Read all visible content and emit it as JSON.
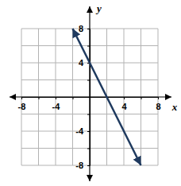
{
  "chart_data": {
    "type": "line",
    "x_label": "x",
    "y_label": "y",
    "x": [
      -2,
      6
    ],
    "values": [
      8,
      -8
    ],
    "color": "#1f3a5f",
    "marker": "arrow",
    "xlim": [
      -8,
      8
    ],
    "ylim": [
      -8,
      8
    ],
    "xticks": [
      -8,
      {
        "value": -6,
        "label": null
      },
      -4,
      {
        "value": -2,
        "label": null
      },
      {
        "value": 0,
        "label": null
      },
      {
        "value": 2,
        "label": null
      },
      4,
      {
        "value": 6,
        "label": null
      },
      8
    ],
    "yticks": [
      -8,
      {
        "value": -6,
        "label": null
      },
      -4,
      {
        "value": -2,
        "label": null
      },
      {
        "value": 0,
        "label": null
      },
      {
        "value": 2,
        "label": null
      },
      4,
      {
        "value": 6,
        "label": null
      },
      8
    ],
    "grid": true
  }
}
